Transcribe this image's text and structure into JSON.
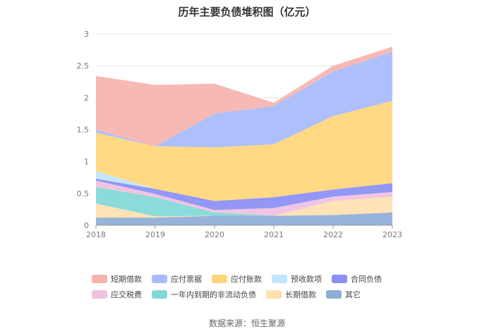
{
  "chart_data": {
    "type": "area",
    "stacked": true,
    "title": "历年主要负债堆积图（亿元）",
    "categories": [
      "2018",
      "2019",
      "2020",
      "2021",
      "2022",
      "2023"
    ],
    "ylim": [
      0,
      3
    ],
    "yticks": [
      "0",
      "0.5",
      "1",
      "1.5",
      "2",
      "2.5",
      "3"
    ],
    "grid": "horizontal",
    "legend_position": "bottom",
    "series": [
      {
        "name": "其它",
        "color": "#8fadd6",
        "values": [
          0.12,
          0.12,
          0.15,
          0.15,
          0.16,
          0.2
        ]
      },
      {
        "name": "长期借款",
        "color": "#ffe0b0",
        "values": [
          0.22,
          0.02,
          0.0,
          0.0,
          0.22,
          0.25
        ]
      },
      {
        "name": "一年内到期的非流动负债",
        "color": "#82d8d8",
        "values": [
          0.26,
          0.3,
          0.05,
          0.0,
          0.0,
          0.0
        ]
      },
      {
        "name": "应交税费",
        "color": "#f0c0e0",
        "values": [
          0.1,
          0.05,
          0.04,
          0.12,
          0.07,
          0.07
        ]
      },
      {
        "name": "合同负债",
        "color": "#8a8ef5",
        "values": [
          0.03,
          0.08,
          0.14,
          0.17,
          0.11,
          0.14
        ]
      },
      {
        "name": "预收款项",
        "color": "#bfe6fb",
        "values": [
          0.12,
          0.0,
          0.0,
          0.0,
          0.0,
          0.0
        ]
      },
      {
        "name": "应付账款",
        "color": "#ffd67a",
        "values": [
          0.6,
          0.67,
          0.84,
          0.83,
          1.15,
          1.29
        ]
      },
      {
        "name": "应付票据",
        "color": "#a7bbfb",
        "values": [
          0.05,
          0.0,
          0.53,
          0.6,
          0.7,
          0.77
        ]
      },
      {
        "name": "短期借款",
        "color": "#f6b3ae",
        "values": [
          0.84,
          0.96,
          0.47,
          0.05,
          0.09,
          0.08
        ]
      }
    ],
    "legend_order": [
      "短期借款",
      "应付票据",
      "应付账款",
      "预收款项",
      "合同负债",
      "应交税费",
      "一年内到期的非流动负债",
      "长期借款",
      "其它"
    ]
  },
  "source": "数据来源：恒生聚源"
}
